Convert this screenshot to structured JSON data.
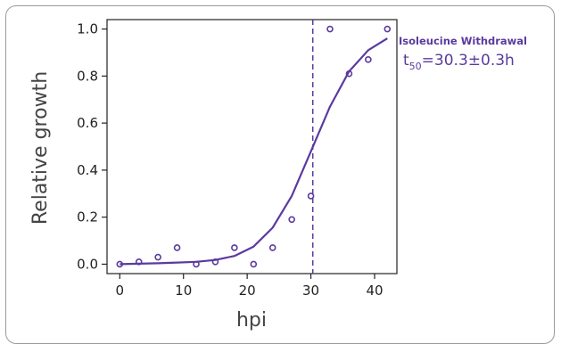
{
  "chart_data": {
    "type": "scatter",
    "xlabel": "hpi",
    "ylabel": "Relative growth",
    "xlim": [
      -2,
      43.5
    ],
    "ylim": [
      -0.04,
      1.04
    ],
    "x_ticks": [
      "0",
      "10",
      "20",
      "30",
      "40"
    ],
    "y_ticks": [
      "0.0",
      "0.2",
      "0.4",
      "0.6",
      "0.8",
      "1.0"
    ],
    "series": [
      {
        "kind": "points",
        "marker": "open-circle",
        "color": "#5b3a9e",
        "x": [
          0,
          3,
          6,
          9,
          12,
          15,
          18,
          21,
          24,
          27,
          30,
          33,
          36,
          39,
          42
        ],
        "y": [
          0.0,
          0.01,
          0.03,
          0.07,
          0.0,
          0.01,
          0.07,
          0.0,
          0.07,
          0.19,
          0.29,
          1.0,
          0.81,
          0.87,
          1.0
        ]
      },
      {
        "kind": "fitted-curve",
        "color": "#5b3a9e",
        "x": [
          0,
          3,
          6,
          9,
          12,
          15,
          18,
          21,
          24,
          27,
          30,
          33,
          36,
          39,
          42
        ],
        "y": [
          0.0,
          0.002,
          0.004,
          0.007,
          0.01,
          0.018,
          0.035,
          0.075,
          0.155,
          0.29,
          0.48,
          0.67,
          0.82,
          0.91,
          0.96
        ]
      }
    ],
    "reference_line": {
      "orientation": "vertical",
      "x": 30.3,
      "style": "dashed",
      "color": "#5b3a9e"
    },
    "annotation": {
      "title": "Isoleucine Withdrawal",
      "label_main": "t",
      "label_sub": "50",
      "label_value": "=30.3±0.3h"
    }
  }
}
